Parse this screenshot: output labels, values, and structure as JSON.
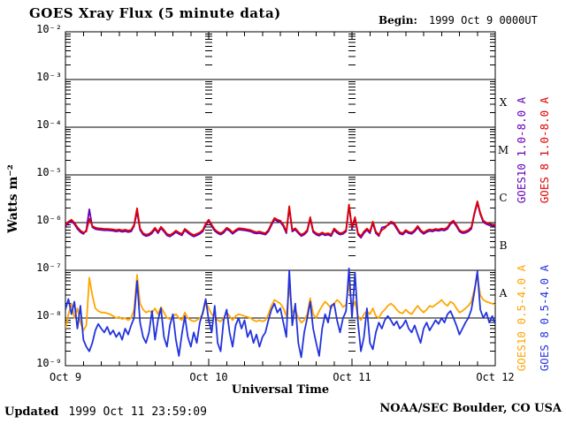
{
  "title": "GOES Xray Flux (5 minute data)",
  "begin": {
    "label": "Begin:",
    "value": "1999 Oct 9 0000UT"
  },
  "footer": {
    "updated_label": "Updated",
    "updated_value": "1999 Oct 11 23:59:09",
    "credit": "NOAA/SEC Boulder, CO USA"
  },
  "chart_data": {
    "type": "line",
    "title": "GOES Xray Flux (5 minute data)",
    "xlabel": "Universal Time",
    "ylabel": "Watts m⁻²",
    "y_scale": "log",
    "ylim": [
      1e-09,
      0.01
    ],
    "y_tick_labels": [
      "10⁻²",
      "10⁻³",
      "10⁻⁴",
      "10⁻⁵",
      "10⁻⁶",
      "10⁻⁷",
      "10⁻⁸",
      "10⁻⁹"
    ],
    "y_tick_exponents": [
      -2,
      -3,
      -4,
      -5,
      -6,
      -7,
      -8,
      -9
    ],
    "x_tick_labels": [
      "Oct 9",
      "Oct 10",
      "Oct 11",
      "Oct 12"
    ],
    "x_range_hours": [
      0,
      72
    ],
    "x_day_boundaries_hours": [
      24,
      48
    ],
    "grid": "horizontal decade lines, minor log tick columns at day boundaries",
    "legend_position": "right, rotated 90deg",
    "flare_class_labels": [
      "X",
      "M",
      "C",
      "B",
      "A"
    ],
    "flare_class_mid_flux": [
      0.000316,
      3.16e-05,
      3.16e-06,
      3.16e-07,
      3.16e-08
    ],
    "axis_color": "#000000",
    "sample_interval_hours": 0.5,
    "t_start_hours": 0,
    "series": [
      {
        "name": "GOES10 1.0-8.0 A",
        "color": "#6600bb",
        "scale": 1e-07,
        "values": [
          8.4,
          9.8,
          10.7,
          9.3,
          7.4,
          6.3,
          5.8,
          7,
          19,
          8,
          7.3,
          7.1,
          7,
          6.9,
          6.9,
          6.8,
          6.7,
          6.5,
          6.7,
          6.4,
          6.6,
          6.3,
          6.5,
          8.4,
          17,
          7,
          5.6,
          5.2,
          5.4,
          6,
          7.3,
          6,
          7.6,
          6.5,
          5.4,
          5.1,
          5.6,
          6.3,
          5.8,
          5.4,
          6.9,
          6.1,
          5.5,
          5.1,
          5.4,
          5.8,
          6.5,
          8.8,
          10.7,
          8.4,
          6.7,
          6,
          5.6,
          6.1,
          7.3,
          6.7,
          5.8,
          6.5,
          7.1,
          7,
          6.9,
          6.7,
          6.5,
          6.1,
          5.9,
          6,
          5.8,
          5.6,
          6.5,
          8.8,
          11.6,
          10.7,
          10.2,
          8.4,
          6,
          20.5,
          6.5,
          7.1,
          6,
          5.2,
          5.6,
          6.5,
          12.1,
          6.3,
          5.6,
          5.3,
          5.8,
          5.4,
          5.6,
          5.2,
          7,
          6.1,
          5.6,
          5.8,
          6.5,
          22.3,
          7.4,
          12.1,
          5.6,
          4.8,
          6,
          7,
          6,
          9.8,
          6,
          5.2,
          7.9,
          8.2,
          8.8,
          9.8,
          9.3,
          7.4,
          5.9,
          5.6,
          6.5,
          6,
          5.8,
          6.5,
          7.9,
          6.5,
          5.8,
          6.3,
          6.7,
          6.5,
          6.9,
          6.7,
          7,
          6.8,
          7.4,
          9.3,
          10.2,
          8.4,
          6.5,
          6,
          6.1,
          6.5,
          7.4,
          14.9,
          26,
          14.9,
          10.2,
          9.3,
          8.8,
          8.6,
          8.4
        ]
      },
      {
        "name": "GOES 8 1.0-8.0 A",
        "color": "#e00000",
        "scale": 1e-07,
        "values": [
          9,
          10.5,
          11.5,
          10,
          8,
          6.8,
          6.2,
          6.5,
          12,
          8.5,
          7.8,
          7.6,
          7.5,
          7.4,
          7.4,
          7.3,
          7.2,
          7,
          7.2,
          6.9,
          7.1,
          6.8,
          7,
          9,
          20,
          7.5,
          6,
          5.6,
          5.8,
          6.5,
          7.8,
          6.4,
          8.2,
          7,
          5.8,
          5.5,
          6,
          6.8,
          6.2,
          5.8,
          7.4,
          6.6,
          5.9,
          5.5,
          5.8,
          6.2,
          7,
          9.5,
          11.5,
          9,
          7.2,
          6.4,
          6,
          6.6,
          7.8,
          7.2,
          6.2,
          7,
          7.6,
          7.5,
          7.4,
          7.2,
          7,
          6.6,
          6.3,
          6.5,
          6.2,
          6,
          7,
          9.5,
          12.5,
          11.5,
          11,
          9,
          6.5,
          22,
          7,
          7.6,
          6.4,
          5.6,
          6,
          7,
          13,
          6.8,
          6,
          5.7,
          6.2,
          5.8,
          6,
          5.6,
          7.5,
          6.6,
          6,
          6.2,
          7,
          24,
          8,
          13,
          6,
          5.2,
          6.5,
          7.5,
          6.5,
          10.5,
          6.5,
          5.6,
          7,
          7.6,
          9,
          10.5,
          10,
          8,
          6.3,
          6,
          7,
          6.4,
          6.2,
          7,
          8.5,
          7,
          6.2,
          6.8,
          7.2,
          7,
          7.4,
          7.2,
          7.5,
          7.3,
          8,
          10,
          11,
          9,
          7,
          6.4,
          6.6,
          7,
          8,
          16,
          28,
          16,
          11,
          10,
          9.5,
          9.2,
          9
        ]
      },
      {
        "name": "GOES10 0.5-4.0 A",
        "color": "#ffa500",
        "scale": 1e-08,
        "values": [
          0.6,
          1.2,
          2,
          1,
          1.6,
          0.8,
          0.55,
          0.7,
          7,
          3,
          1.6,
          1.4,
          1.3,
          1.3,
          1.25,
          1.2,
          1.1,
          1,
          1.05,
          0.95,
          1,
          0.9,
          1,
          1.5,
          8,
          2,
          1.5,
          1.3,
          1.4,
          1.3,
          1.6,
          1.2,
          1.7,
          1.3,
          1,
          0.95,
          1.1,
          1.2,
          1,
          0.9,
          1.3,
          1,
          0.9,
          0.85,
          0.9,
          1,
          1.2,
          2.2,
          1.6,
          1.2,
          1,
          0.9,
          0.85,
          1,
          1.3,
          1.1,
          0.9,
          1.1,
          1.2,
          1.15,
          1.1,
          1.05,
          1,
          0.9,
          0.85,
          0.9,
          0.85,
          0.9,
          1.2,
          1.8,
          2.4,
          2.2,
          2,
          1.6,
          1.1,
          4.5,
          1.3,
          1.5,
          1,
          0.8,
          0.9,
          1.2,
          2.6,
          1.2,
          1,
          1.4,
          1.8,
          2.2,
          1.9,
          1.6,
          2,
          2.4,
          2.1,
          1.7,
          1.9,
          5.5,
          1.6,
          2.2,
          1.1,
          0.9,
          1.2,
          1.4,
          1.2,
          1.6,
          1.1,
          1,
          1.3,
          1.5,
          1.8,
          2,
          1.8,
          1.5,
          1.3,
          1.25,
          1.5,
          1.3,
          1.2,
          1.5,
          1.8,
          1.5,
          1.3,
          1.5,
          1.8,
          1.7,
          1.9,
          2.1,
          2.4,
          2,
          1.8,
          2.2,
          2,
          1.6,
          1.3,
          1.4,
          1.6,
          1.8,
          2.2,
          4,
          7.5,
          3,
          2.4,
          2.2,
          2.1,
          2,
          1.9
        ]
      },
      {
        "name": "GOES 8 0.5-4.0 A",
        "color": "#2233dd",
        "scale": 1e-08,
        "values": [
          1.5,
          2.5,
          1.2,
          2.2,
          0.6,
          1.8,
          0.35,
          0.25,
          0.2,
          0.3,
          0.55,
          0.75,
          0.6,
          0.5,
          0.65,
          0.45,
          0.55,
          0.4,
          0.5,
          0.35,
          0.6,
          0.45,
          0.7,
          1,
          6,
          0.8,
          0.4,
          0.3,
          0.5,
          1.4,
          0.35,
          0.9,
          1.6,
          0.4,
          0.25,
          0.7,
          1.2,
          0.35,
          0.16,
          0.45,
          1.1,
          0.4,
          0.25,
          0.5,
          0.3,
          0.8,
          1.3,
          2.5,
          0.9,
          0.5,
          1.8,
          0.3,
          0.2,
          0.9,
          1.5,
          0.5,
          0.25,
          0.7,
          1,
          0.6,
          0.9,
          0.4,
          0.55,
          0.3,
          0.45,
          0.25,
          0.4,
          0.5,
          0.9,
          1.5,
          2,
          1.3,
          1.6,
          0.8,
          0.4,
          10,
          0.7,
          2,
          0.3,
          0.15,
          0.5,
          1,
          2.2,
          0.6,
          0.3,
          0.16,
          0.6,
          1.2,
          0.8,
          1.8,
          2,
          0.9,
          0.5,
          1,
          1.4,
          11,
          1,
          9,
          0.8,
          0.2,
          0.4,
          1.6,
          0.3,
          0.22,
          0.5,
          0.8,
          0.6,
          0.9,
          1.1,
          0.9,
          0.7,
          0.85,
          0.6,
          0.7,
          0.9,
          0.6,
          0.5,
          0.7,
          0.45,
          0.3,
          0.6,
          0.8,
          0.55,
          0.7,
          0.9,
          0.75,
          1,
          0.8,
          1.2,
          1.4,
          1,
          0.7,
          0.45,
          0.6,
          0.8,
          1,
          1.5,
          3.5,
          9.5,
          1.5,
          1,
          1.3,
          0.8,
          1.1,
          0.75
        ]
      }
    ]
  }
}
